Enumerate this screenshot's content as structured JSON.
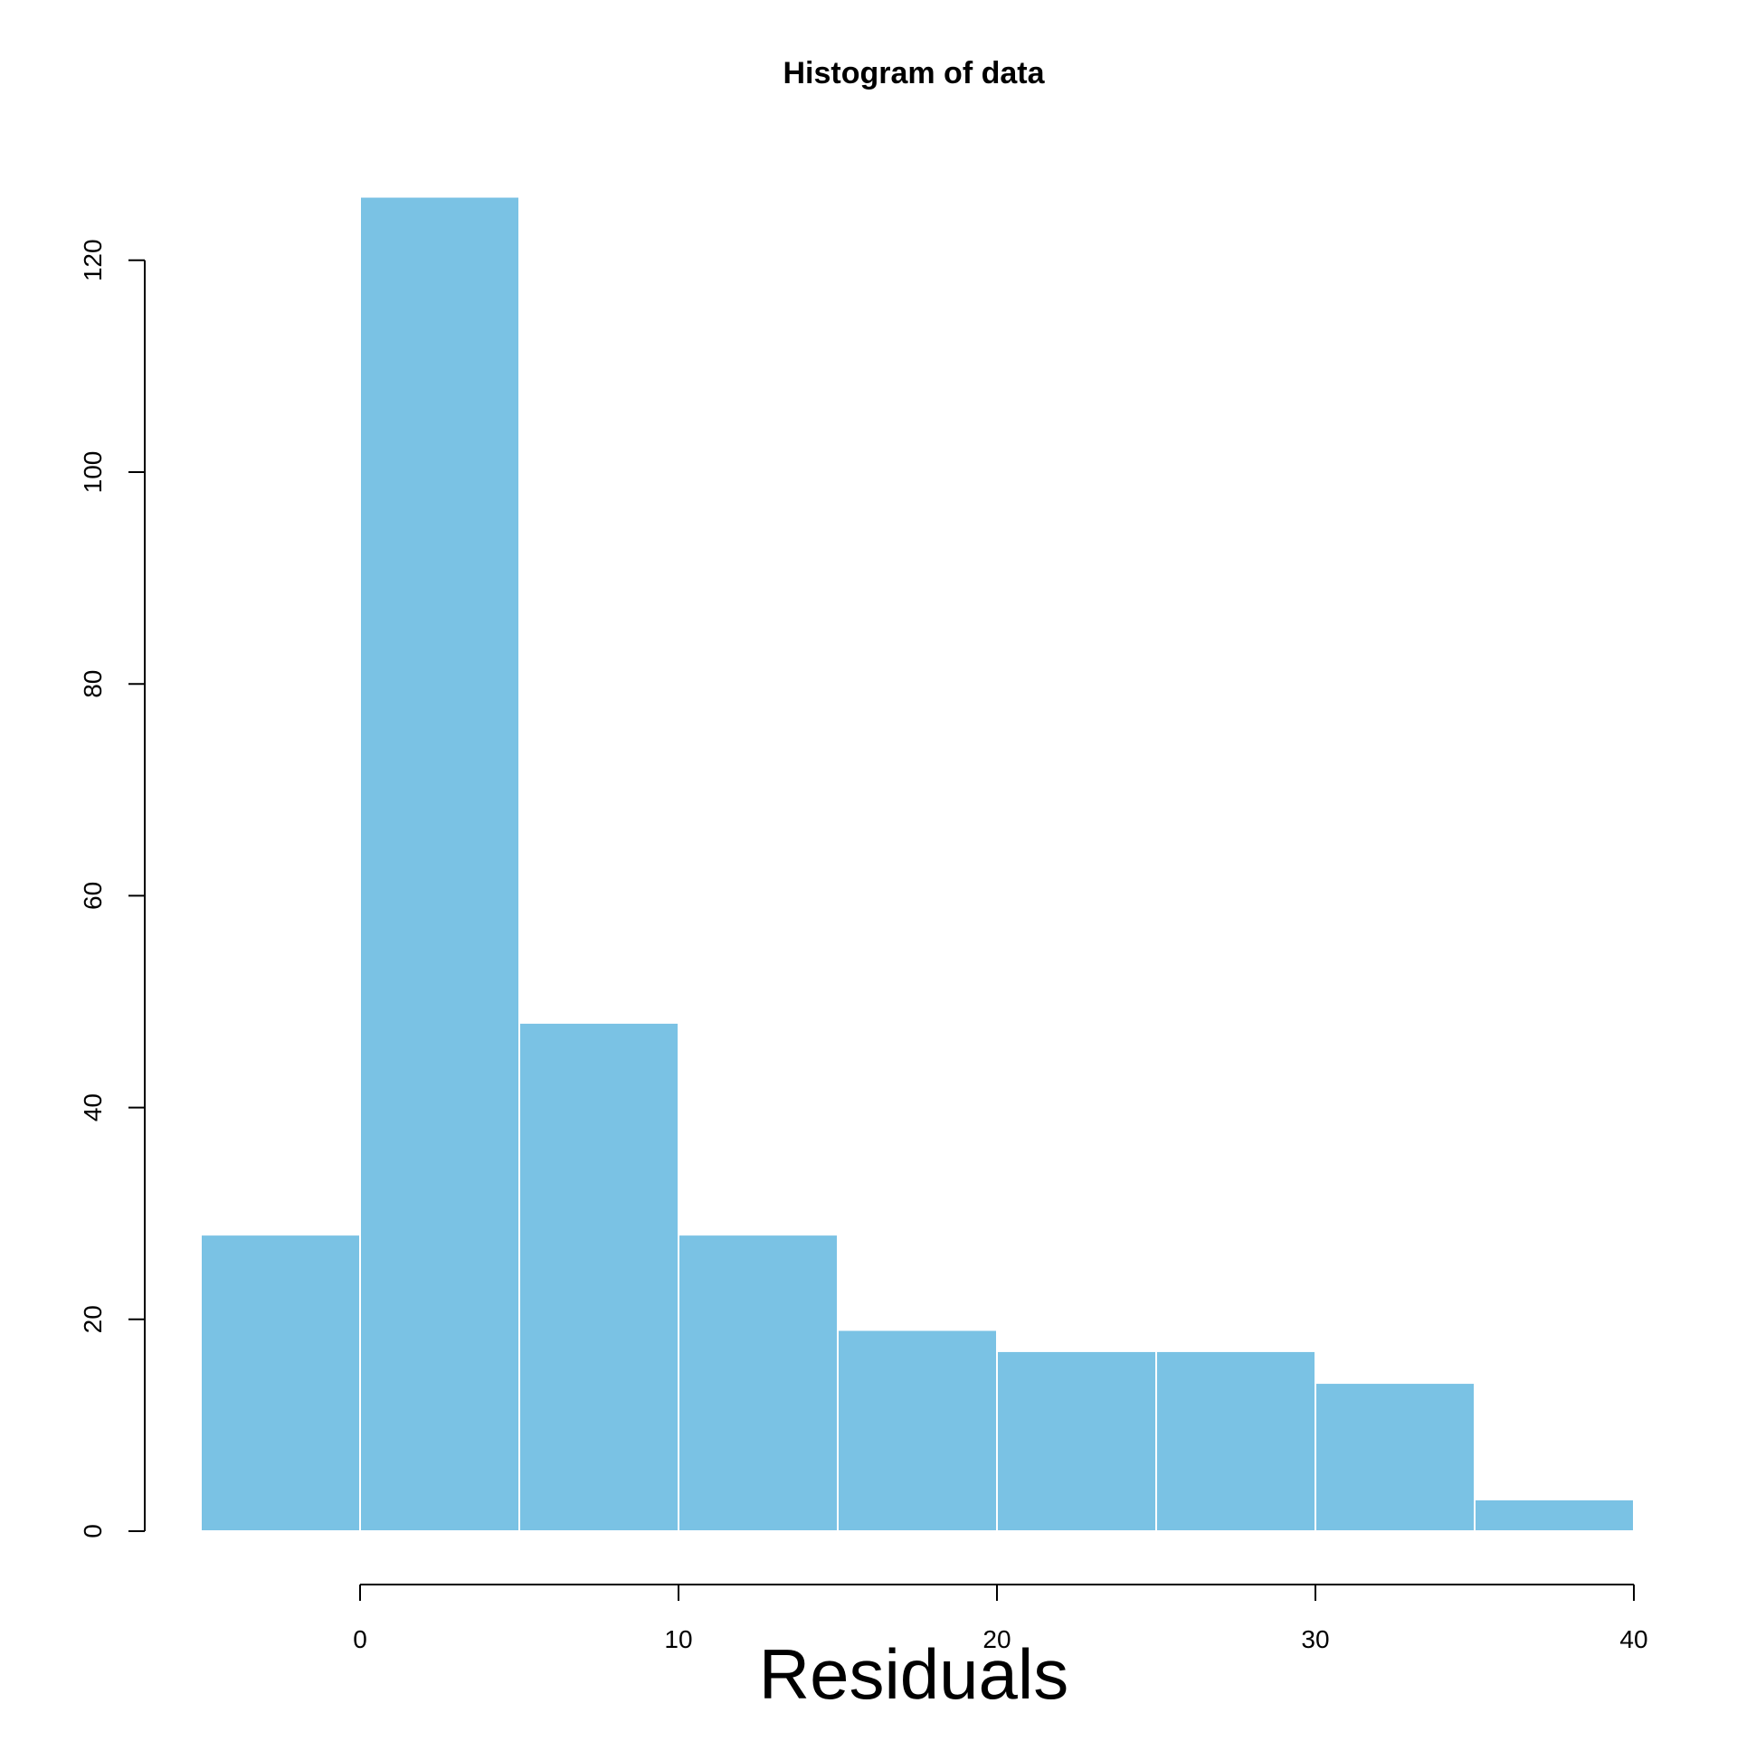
{
  "chart_data": {
    "type": "bar",
    "subtype": "histogram",
    "title": "Histogram of data",
    "xlabel": "Residuals",
    "ylabel": "",
    "bin_edges": [
      -5,
      0,
      5,
      10,
      15,
      20,
      25,
      30,
      35,
      40
    ],
    "values": [
      28,
      126,
      48,
      28,
      19,
      17,
      17,
      14,
      3
    ],
    "x_ticks": [
      0,
      10,
      20,
      30,
      40
    ],
    "x_tick_labels": [
      "0",
      "10",
      "20",
      "30",
      "40"
    ],
    "y_ticks": [
      0,
      20,
      40,
      60,
      80,
      100,
      120
    ],
    "y_tick_labels": [
      "0",
      "20",
      "40",
      "60",
      "80",
      "100",
      "120"
    ],
    "xlim": [
      -5,
      40
    ],
    "ylim": [
      0,
      126
    ],
    "grid": false,
    "legend": "none",
    "bar_color": "#7AC2E4",
    "bar_edge_color": "#FFFFFF"
  }
}
